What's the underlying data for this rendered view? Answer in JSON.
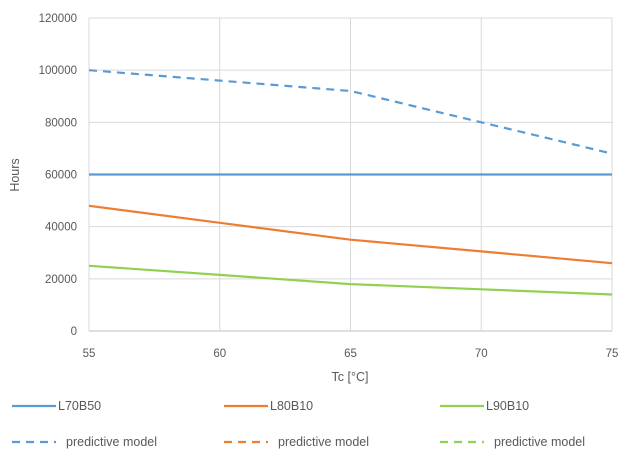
{
  "chart_data": {
    "type": "line",
    "title": "",
    "xlabel": "Tc [°C]",
    "ylabel": "Hours",
    "xlim": [
      55,
      75
    ],
    "ylim": [
      0,
      120000
    ],
    "x_ticks": [
      55,
      60,
      65,
      70,
      75
    ],
    "x_tick_labels": [
      "55",
      "60",
      "65",
      "70",
      "75"
    ],
    "y_ticks": [
      0,
      20000,
      40000,
      60000,
      80000,
      100000,
      120000
    ],
    "y_tick_labels": [
      "0",
      "20000",
      "40000",
      "60000",
      "80000",
      "100000",
      "120000"
    ],
    "grid": true,
    "legend_position": "bottom",
    "series": [
      {
        "name": "L70B50",
        "color": "#5b9bd5",
        "style": "solid",
        "x": [
          55,
          60,
          65,
          70,
          75
        ],
        "y": [
          60000,
          60000,
          60000,
          60000,
          60000
        ]
      },
      {
        "name": "L80B10",
        "color": "#ed7d31",
        "style": "solid",
        "x": [
          55,
          60,
          65,
          70,
          75
        ],
        "y": [
          48000,
          41500,
          35000,
          30500,
          26000
        ]
      },
      {
        "name": "L90B10",
        "color": "#92d050",
        "style": "solid",
        "x": [
          55,
          60,
          65,
          70,
          75
        ],
        "y": [
          25000,
          21500,
          18000,
          16000,
          14000
        ]
      },
      {
        "name": "predictive model",
        "color": "#5b9bd5",
        "style": "dashed",
        "x": [
          55,
          60,
          65,
          70,
          75
        ],
        "y": [
          100000,
          96000,
          92000,
          80000,
          68000
        ]
      },
      {
        "name": "predictive model",
        "color": "#ed7d31",
        "style": "dashed",
        "x": [],
        "y": []
      },
      {
        "name": "predictive model",
        "color": "#92d050",
        "style": "dashed",
        "x": [],
        "y": []
      }
    ]
  }
}
